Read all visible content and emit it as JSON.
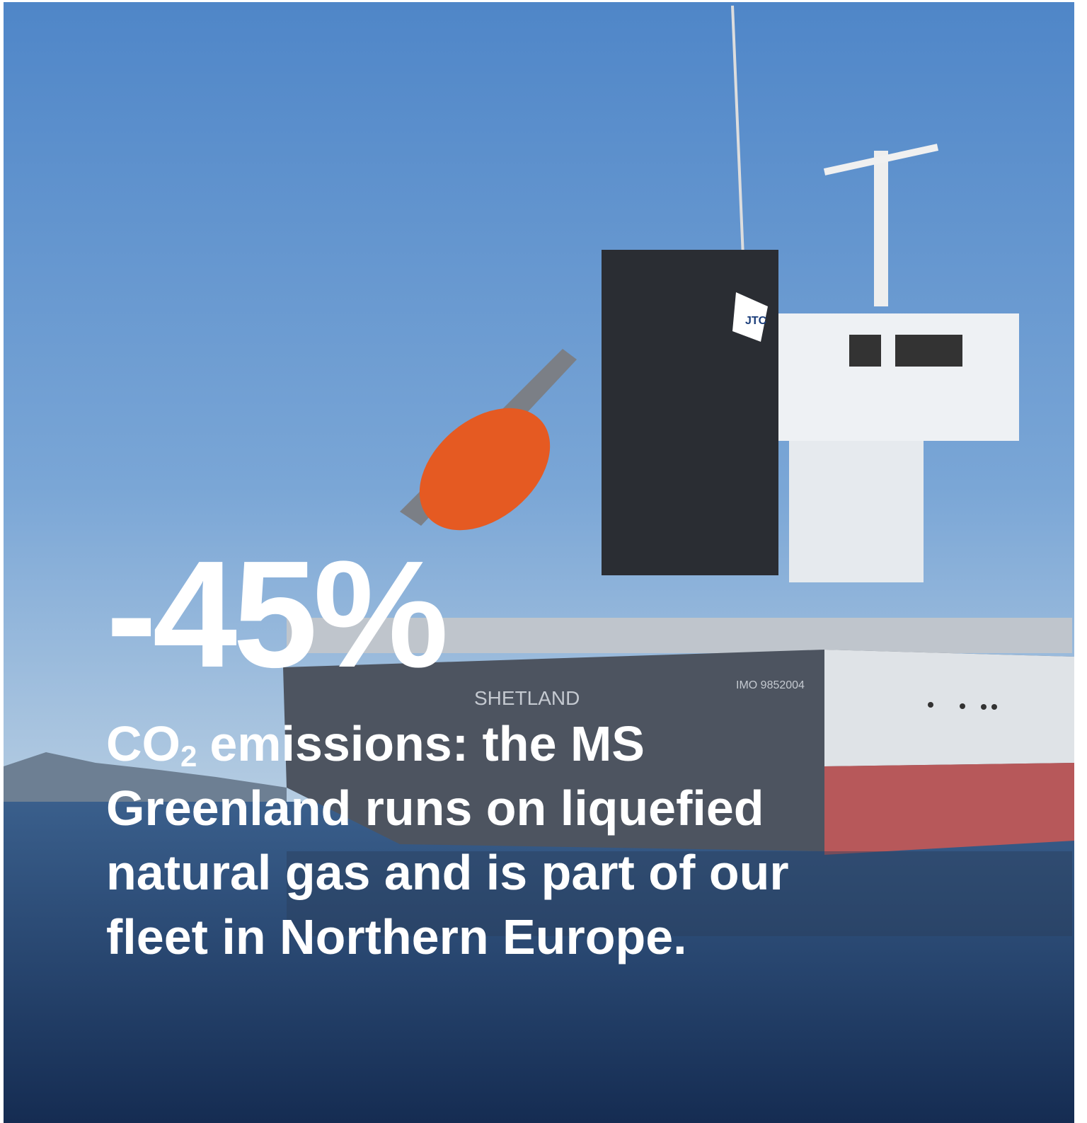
{
  "headline": "-45%",
  "caption": {
    "prefix": "CO",
    "subscript": "2",
    "lines": [
      "emissions: the MS",
      "Greenland runs on liquefied",
      "natural gas and is part of our",
      "fleet in Northern Europe."
    ]
  },
  "ship": {
    "name": "SHETLAND",
    "imo": "IMO 9852004",
    "logo": "JTC"
  }
}
